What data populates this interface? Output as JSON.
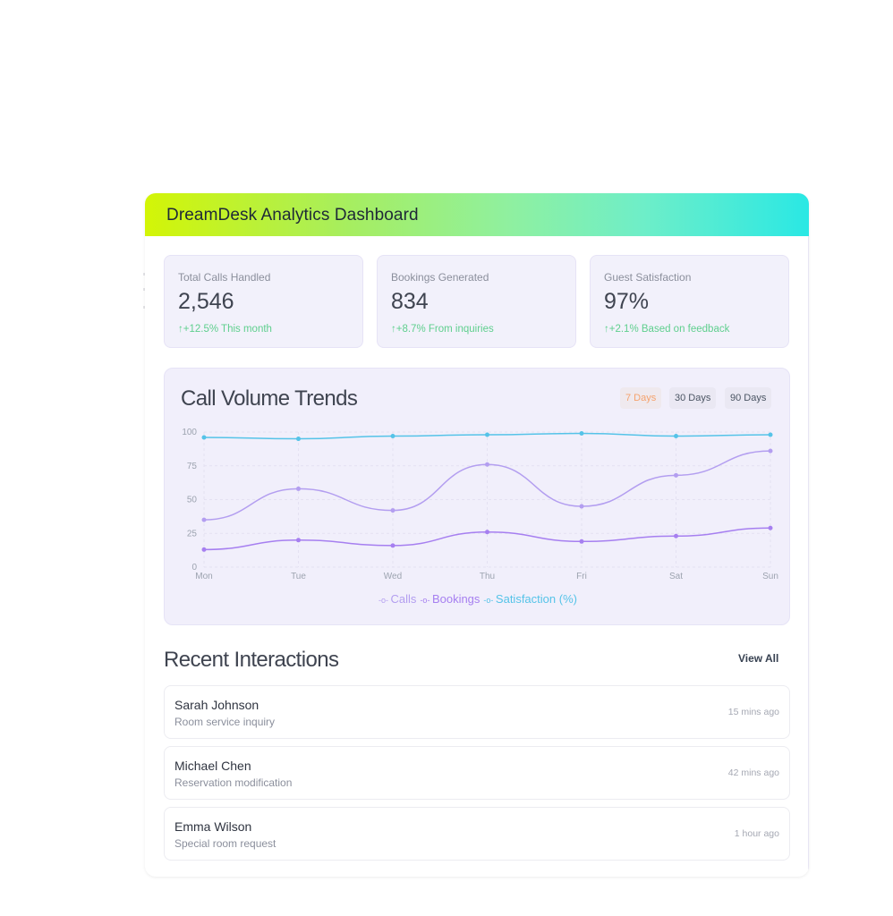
{
  "app": {
    "title": "DreamDesk Analytics Dashboard"
  },
  "stats": [
    {
      "label": "Total Calls Handled",
      "value": "2,546",
      "change": "↑+12.5% This month"
    },
    {
      "label": "Bookings Generated",
      "value": "834",
      "change": "↑+8.7% From inquiries"
    },
    {
      "label": "Guest Satisfaction",
      "value": "97%",
      "change": "↑+2.1% Based on feedback"
    }
  ],
  "chart_section": {
    "title": "Call Volume Trends",
    "ranges": [
      "7 Days",
      "30 Days",
      "90 Days"
    ],
    "active_range": "7 Days"
  },
  "chart_data": {
    "type": "line",
    "x": [
      "Mon",
      "Tue",
      "Wed",
      "Thu",
      "Fri",
      "Sat",
      "Sun"
    ],
    "ylim": [
      0,
      100
    ],
    "yticks": [
      0,
      25,
      50,
      75,
      100
    ],
    "grid": true,
    "legend": "bottom",
    "series": [
      {
        "name": "Calls",
        "color": "#b39ef0",
        "values": [
          35,
          58,
          42,
          76,
          45,
          68,
          86
        ]
      },
      {
        "name": "Bookings",
        "color": "#a67ff0",
        "values": [
          13,
          20,
          16,
          26,
          19,
          23,
          29
        ]
      },
      {
        "name": "Satisfaction (%)",
        "color": "#55c3e8",
        "values": [
          96,
          95,
          97,
          98,
          99,
          97,
          98
        ]
      }
    ]
  },
  "recent": {
    "title": "Recent Interactions",
    "view_all": "View All",
    "items": [
      {
        "name": "Sarah Johnson",
        "desc": "Room service inquiry",
        "time": "15 mins ago"
      },
      {
        "name": "Michael Chen",
        "desc": "Reservation modification",
        "time": "42 mins ago"
      },
      {
        "name": "Emma Wilson",
        "desc": "Special room request",
        "time": "1 hour ago"
      }
    ]
  },
  "colors": {
    "positive": "#5fcf8e",
    "active_range": "#f5a26d",
    "header_gradient_start": "#d3f506",
    "header_gradient_end": "#2ae8e4"
  }
}
